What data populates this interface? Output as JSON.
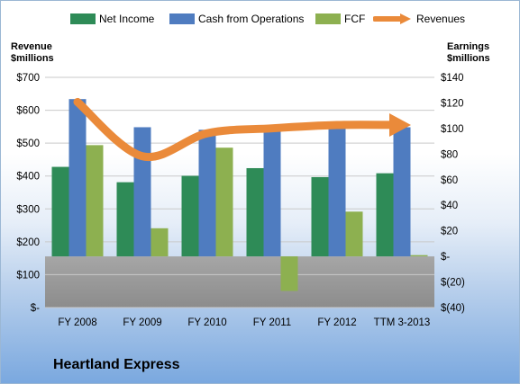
{
  "company_name": "Heartland Express",
  "colors": {
    "net_income": "#2e8b57",
    "cash_from_operations": "#4f7cc0",
    "fcf": "#8db050",
    "revenues": "#ea8a3a",
    "plot_bg_bottom": "#8c8c8c"
  },
  "chart_data": {
    "type": "bar",
    "categories": [
      "FY 2008",
      "FY 2009",
      "FY 2010",
      "FY 2011",
      "FY 2012",
      "TTM 3-2013"
    ],
    "series": [
      {
        "name": "Net Income",
        "axis": "right",
        "values": [
          70,
          58,
          63,
          69,
          62,
          65
        ]
      },
      {
        "name": "Cash from Operations",
        "axis": "right",
        "values": [
          123,
          101,
          99,
          99,
          100,
          101
        ]
      },
      {
        "name": "FCF",
        "axis": "right",
        "values": [
          87,
          22,
          85,
          -27,
          35,
          1
        ]
      },
      {
        "name": "Revenues",
        "type": "line",
        "axis": "left",
        "values": [
          625,
          460,
          530,
          545,
          555,
          555
        ]
      }
    ],
    "y_left": {
      "title": [
        "Revenue",
        "$millions"
      ],
      "range": [
        0,
        700
      ],
      "ticks": [
        "$-",
        "$100",
        "$200",
        "$300",
        "$400",
        "$500",
        "$600",
        "$700"
      ]
    },
    "y_right": {
      "title": [
        "Earnings",
        "$millions"
      ],
      "range": [
        -40,
        140
      ],
      "ticks": [
        "$(40)",
        "$(20)",
        "$-",
        "$20",
        "$40",
        "$60",
        "$80",
        "$100",
        "$120",
        "$140"
      ]
    },
    "legend": {
      "placement": "top",
      "entries": [
        "Net Income",
        "Cash from Operations",
        "FCF",
        "Revenues"
      ]
    },
    "grid": true
  }
}
